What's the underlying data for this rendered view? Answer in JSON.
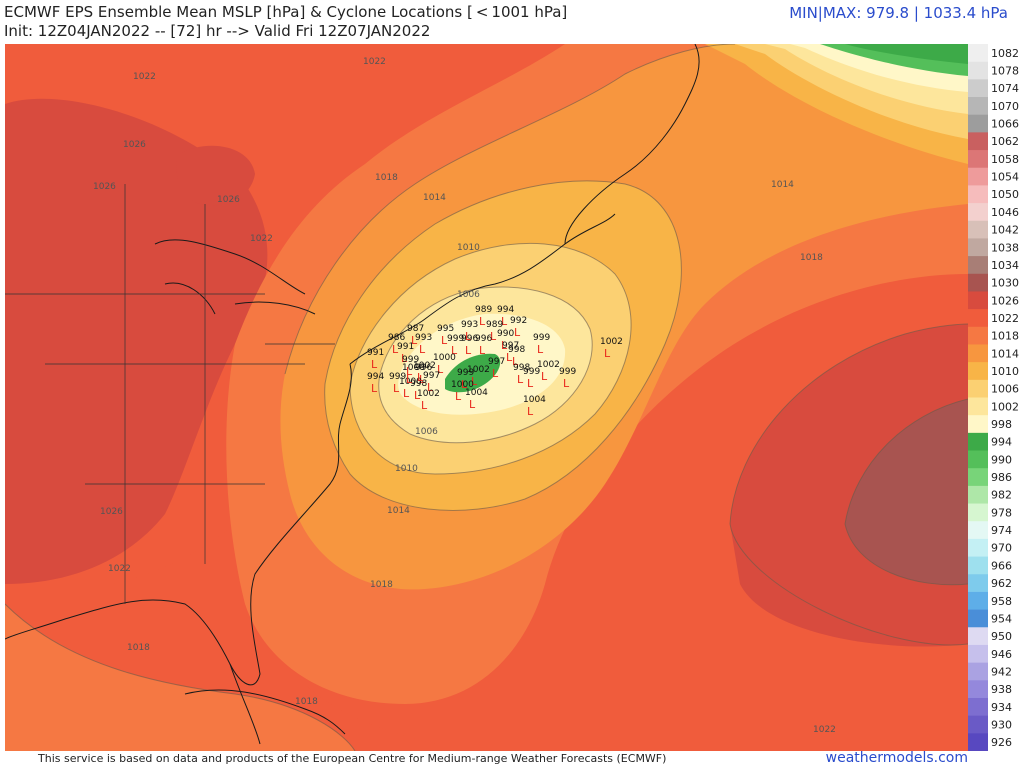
{
  "header": {
    "title_line1": "ECMWF EPS Ensemble Mean MSLP [hPa] & Cyclone Locations [ < 1001 hPa]",
    "title_line2": "Init: 12Z04JAN2022 -- [72] hr --> Valid Fri 12Z07JAN2022",
    "minmax": "MIN|MAX: 979.8 | 1033.4 hPa"
  },
  "footer": {
    "note": "This service is based on data and products of the European Centre for Medium-range Weather Forecasts (ECMWF)",
    "site": "weathermodels.com"
  },
  "colorbar": {
    "levels": [
      "1082",
      "1078",
      "1074",
      "1070",
      "1066",
      "1062",
      "1058",
      "1054",
      "1050",
      "1046",
      "1042",
      "1038",
      "1034",
      "1030",
      "1026",
      "1022",
      "1018",
      "1014",
      "1010",
      "1006",
      "1002",
      "998",
      "994",
      "990",
      "986",
      "982",
      "978",
      "974",
      "970",
      "966",
      "962",
      "958",
      "954",
      "950",
      "946",
      "942",
      "938",
      "934",
      "930",
      "926"
    ],
    "colors": [
      "#efefef",
      "#e3e3e3",
      "#cccccc",
      "#b6b6b6",
      "#9d9d9d",
      "#c96060",
      "#dc7676",
      "#ee9b9b",
      "#f6bcbc",
      "#f3d0ce",
      "#d8c0b8",
      "#c0a8a0",
      "#a87e76",
      "#a85450",
      "#d84b3e",
      "#f05c3c",
      "#f57843",
      "#f7963f",
      "#f8b447",
      "#fbd072",
      "#fde69c",
      "#fff7c8",
      "#3daa48",
      "#54bf5a",
      "#78d479",
      "#aee7a8",
      "#d6f6d0",
      "#e4f8f4",
      "#c4f0f4",
      "#9ee0ee",
      "#7ecbec",
      "#5eaee8",
      "#4a8ed8",
      "#dedaf2",
      "#c6c0ec",
      "#aaa2e2",
      "#9488dc",
      "#7d6ed0",
      "#6a5ac6",
      "#5848c0"
    ]
  },
  "contour_labels": [
    "1022",
    "1026",
    "1026",
    "1026",
    "1022",
    "1022",
    "1018",
    "1014",
    "1010",
    "1006",
    "1006",
    "1010",
    "1014",
    "1014",
    "1018",
    "1018",
    "1026",
    "1022",
    "1018",
    "1018",
    "1022"
  ],
  "cyclones": [
    {
      "label": "989"
    },
    {
      "label": "994"
    },
    {
      "label": "992"
    },
    {
      "label": "993"
    },
    {
      "label": "989"
    },
    {
      "label": "990"
    },
    {
      "label": "987"
    },
    {
      "label": "986"
    },
    {
      "label": "993"
    },
    {
      "label": "995"
    },
    {
      "label": "999"
    },
    {
      "label": "996"
    },
    {
      "label": "996"
    },
    {
      "label": "997"
    },
    {
      "label": "998"
    },
    {
      "label": "999"
    },
    {
      "label": "991"
    },
    {
      "label": "991"
    },
    {
      "label": "999"
    },
    {
      "label": "1000"
    },
    {
      "label": "996"
    },
    {
      "label": "997"
    },
    {
      "label": "999"
    },
    {
      "label": "1002"
    },
    {
      "label": "998"
    },
    {
      "label": "999"
    },
    {
      "label": "994"
    },
    {
      "label": "999"
    },
    {
      "label": "1000"
    },
    {
      "label": "998"
    },
    {
      "label": "997"
    },
    {
      "label": "1002"
    },
    {
      "label": "1000"
    },
    {
      "label": "1002"
    },
    {
      "label": "1004"
    },
    {
      "label": "1004"
    },
    {
      "label": "1000"
    },
    {
      "label": "1002"
    },
    {
      "label": "999"
    },
    {
      "label": "1002"
    }
  ]
}
